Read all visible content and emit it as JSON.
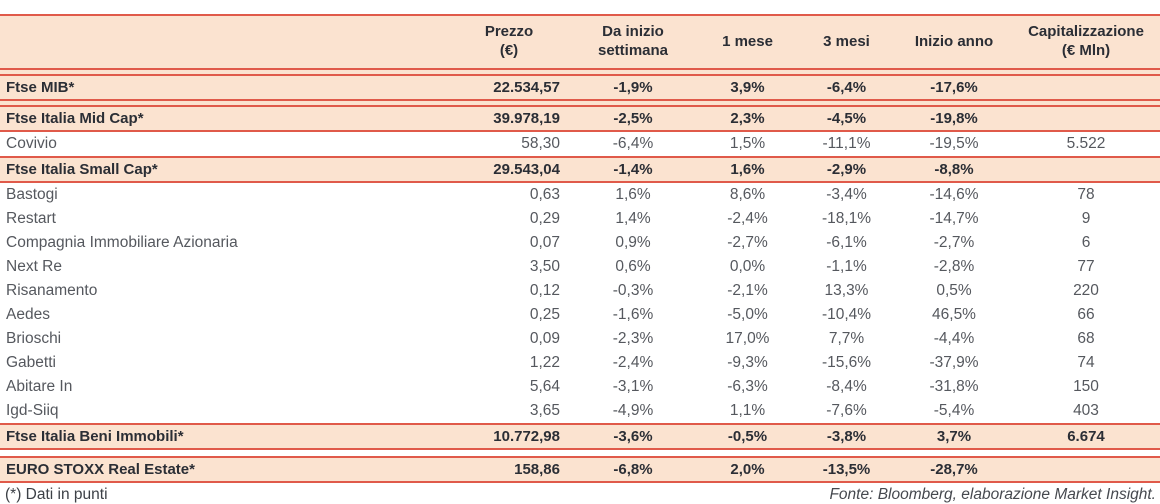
{
  "colors": {
    "accent_line": "#e05a4a",
    "row_highlight": "#fbe3d0"
  },
  "table": {
    "columns": [
      {
        "line1": "",
        "line2": ""
      },
      {
        "line1": "Prezzo",
        "line2": "(€)"
      },
      {
        "line1": "Da inizio",
        "line2": "settimana"
      },
      {
        "line1": "1 mese",
        "line2": ""
      },
      {
        "line1": "3 mesi",
        "line2": ""
      },
      {
        "line1": "Inizio anno",
        "line2": ""
      },
      {
        "line1": "Capitalizzazione",
        "line2": "(€ Mln)"
      }
    ],
    "rows": [
      {
        "type": "index",
        "spacer_before": "peach",
        "name": "Ftse MIB*",
        "prezzo": "22.534,57",
        "settimana": "-1,9%",
        "mese1": "3,9%",
        "mesi3": "-6,4%",
        "anno": "-17,6%",
        "cap": ""
      },
      {
        "type": "index",
        "spacer_before": "peach",
        "name": "Ftse Italia Mid Cap*",
        "prezzo": "39.978,19",
        "settimana": "-2,5%",
        "mese1": "2,3%",
        "mesi3": "-4,5%",
        "anno": "-19,8%",
        "cap": ""
      },
      {
        "type": "stock",
        "name": "Covivio",
        "prezzo": "58,30",
        "settimana": "-6,4%",
        "mese1": "1,5%",
        "mesi3": "-11,1%",
        "anno": "-19,5%",
        "cap": "5.522"
      },
      {
        "type": "index",
        "name": "Ftse Italia Small Cap*",
        "prezzo": "29.543,04",
        "settimana": "-1,4%",
        "mese1": "1,6%",
        "mesi3": "-2,9%",
        "anno": "-8,8%",
        "cap": ""
      },
      {
        "type": "stock",
        "name": "Bastogi",
        "prezzo": "0,63",
        "settimana": "1,6%",
        "mese1": "8,6%",
        "mesi3": "-3,4%",
        "anno": "-14,6%",
        "cap": "78"
      },
      {
        "type": "stock",
        "name": "Restart",
        "prezzo": "0,29",
        "settimana": "1,4%",
        "mese1": "-2,4%",
        "mesi3": "-18,1%",
        "anno": "-14,7%",
        "cap": "9"
      },
      {
        "type": "stock",
        "name": "Compagnia Immobiliare Azionaria",
        "prezzo": "0,07",
        "settimana": "0,9%",
        "mese1": "-2,7%",
        "mesi3": "-6,1%",
        "anno": "-2,7%",
        "cap": "6"
      },
      {
        "type": "stock",
        "name": "Next Re",
        "prezzo": "3,50",
        "settimana": "0,6%",
        "mese1": "0,0%",
        "mesi3": "-1,1%",
        "anno": "-2,8%",
        "cap": "77"
      },
      {
        "type": "stock",
        "name": "Risanamento",
        "prezzo": "0,12",
        "settimana": "-0,3%",
        "mese1": "-2,1%",
        "mesi3": "13,3%",
        "anno": "0,5%",
        "cap": "220"
      },
      {
        "type": "stock",
        "name": "Aedes",
        "prezzo": "0,25",
        "settimana": "-1,6%",
        "mese1": "-5,0%",
        "mesi3": "-10,4%",
        "anno": "46,5%",
        "cap": "66"
      },
      {
        "type": "stock",
        "name": "Brioschi",
        "prezzo": "0,09",
        "settimana": "-2,3%",
        "mese1": "17,0%",
        "mesi3": "7,7%",
        "anno": "-4,4%",
        "cap": "68"
      },
      {
        "type": "stock",
        "name": "Gabetti",
        "prezzo": "1,22",
        "settimana": "-2,4%",
        "mese1": "-9,3%",
        "mesi3": "-15,6%",
        "anno": "-37,9%",
        "cap": "74"
      },
      {
        "type": "stock",
        "name": "Abitare In",
        "prezzo": "5,64",
        "settimana": "-3,1%",
        "mese1": "-6,3%",
        "mesi3": "-8,4%",
        "anno": "-31,8%",
        "cap": "150"
      },
      {
        "type": "stock",
        "name": "Igd-Siiq",
        "prezzo": "3,65",
        "settimana": "-4,9%",
        "mese1": "1,1%",
        "mesi3": "-7,6%",
        "anno": "-5,4%",
        "cap": "403"
      },
      {
        "type": "index",
        "name": "Ftse Italia Beni Immobili*",
        "prezzo": "10.772,98",
        "settimana": "-3,6%",
        "mese1": "-0,5%",
        "mesi3": "-3,8%",
        "anno": "3,7%",
        "cap": "6.674"
      },
      {
        "type": "index",
        "spacer_before": "white",
        "name": "EURO STOXX Real Estate*",
        "prezzo": "158,86",
        "settimana": "-6,8%",
        "mese1": "2,0%",
        "mesi3": "-13,5%",
        "anno": "-28,7%",
        "cap": ""
      }
    ]
  },
  "footer": {
    "note": "(*) Dati in punti",
    "source": "Fonte: Bloomberg, elaborazione Market Insight."
  }
}
